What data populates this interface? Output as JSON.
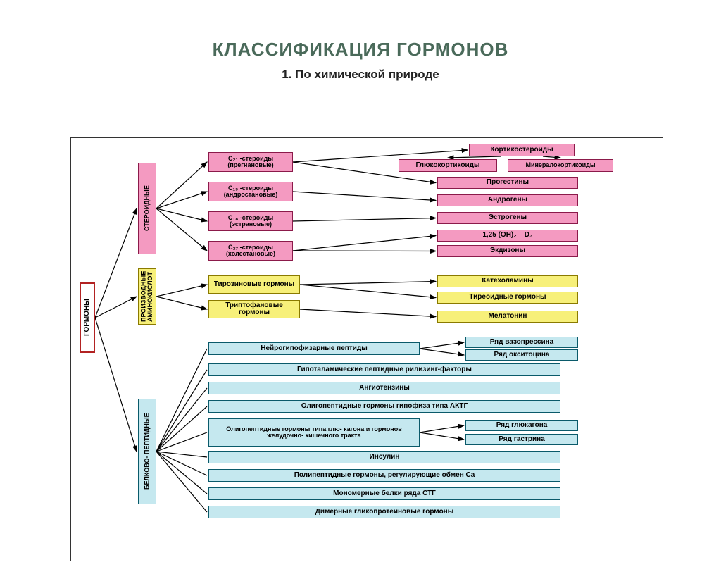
{
  "title": "КЛАССИФИКАЦИЯ ГОРМОНОВ",
  "subtitle": "1.  По химической природе",
  "colors": {
    "title_color": "#4a6a5a",
    "root_bg": "#ffffff",
    "root_border": "#b22222",
    "pink_bg": "#f49ac1",
    "pink_border": "#8b1a4a",
    "yellow_bg": "#f7f07a",
    "yellow_border": "#8a7a00",
    "blue_bg": "#c5e8ef",
    "blue_border": "#0a5a6a",
    "arrow": "#000000"
  },
  "root": {
    "label": "ГОРМОНЫ"
  },
  "level1": [
    {
      "id": "steroid",
      "label": "СТЕРОИДНЫЕ",
      "color": "pink"
    },
    {
      "id": "amino",
      "label": "ПРОИЗВОДНЫЕ АМИНОКИСЛОТ",
      "color": "yellow"
    },
    {
      "id": "peptide",
      "label": "БЕЛКОВО- ПЕПТИДНЫЕ",
      "color": "blue"
    }
  ],
  "steroid_mid": [
    {
      "label": "С₂₁ -стероиды (прегнановые)"
    },
    {
      "label": "С₁₉ -стероиды (андростановые)"
    },
    {
      "label": "С₁₈ -стероиды (эстрановые)"
    },
    {
      "label": "С₂₇ -стероиды (холестановые)"
    }
  ],
  "steroid_right_top": {
    "header": "Кортикостероиды",
    "children": [
      "Глюкокортикоиды",
      "Минералокортикоиды"
    ]
  },
  "steroid_right": [
    "Прогестины",
    "Андрогены",
    "Эстрогены",
    "1,25 (OH)₂ – D₃",
    "Экдизоны"
  ],
  "amino_mid": [
    "Тирозиновые гормоны",
    "Триптофановые гормоны"
  ],
  "amino_right": [
    "Катехоламины",
    "Тиреоидные гормоны",
    "Мелатонин"
  ],
  "peptide_rows": [
    {
      "main": "Нейрогипофизарные пептиды",
      "extras": [
        "Ряд вазопрессина",
        "Ряд окситоцина"
      ]
    },
    {
      "main": "Гипоталамические  пептидные рилизинг-факторы"
    },
    {
      "main": "Ангиотензины"
    },
    {
      "main": "Олигопептидные гормоны гипофиза типа АКТГ"
    },
    {
      "main": "Олигопептидные гормоны типа глю- кагона и гормонов желудочно- кишечного тракта",
      "multiline": true,
      "extras": [
        "Ряд глюкагона",
        "Ряд гастрина"
      ]
    },
    {
      "main": "Инсулин"
    },
    {
      "main": "Полипептидные гормоны, регулирующие  обмен  Ca"
    },
    {
      "main": "Мономерные белки  ряда  СТГ"
    },
    {
      "main": "Димерные  гликопротеиновые  гормоны"
    }
  ]
}
